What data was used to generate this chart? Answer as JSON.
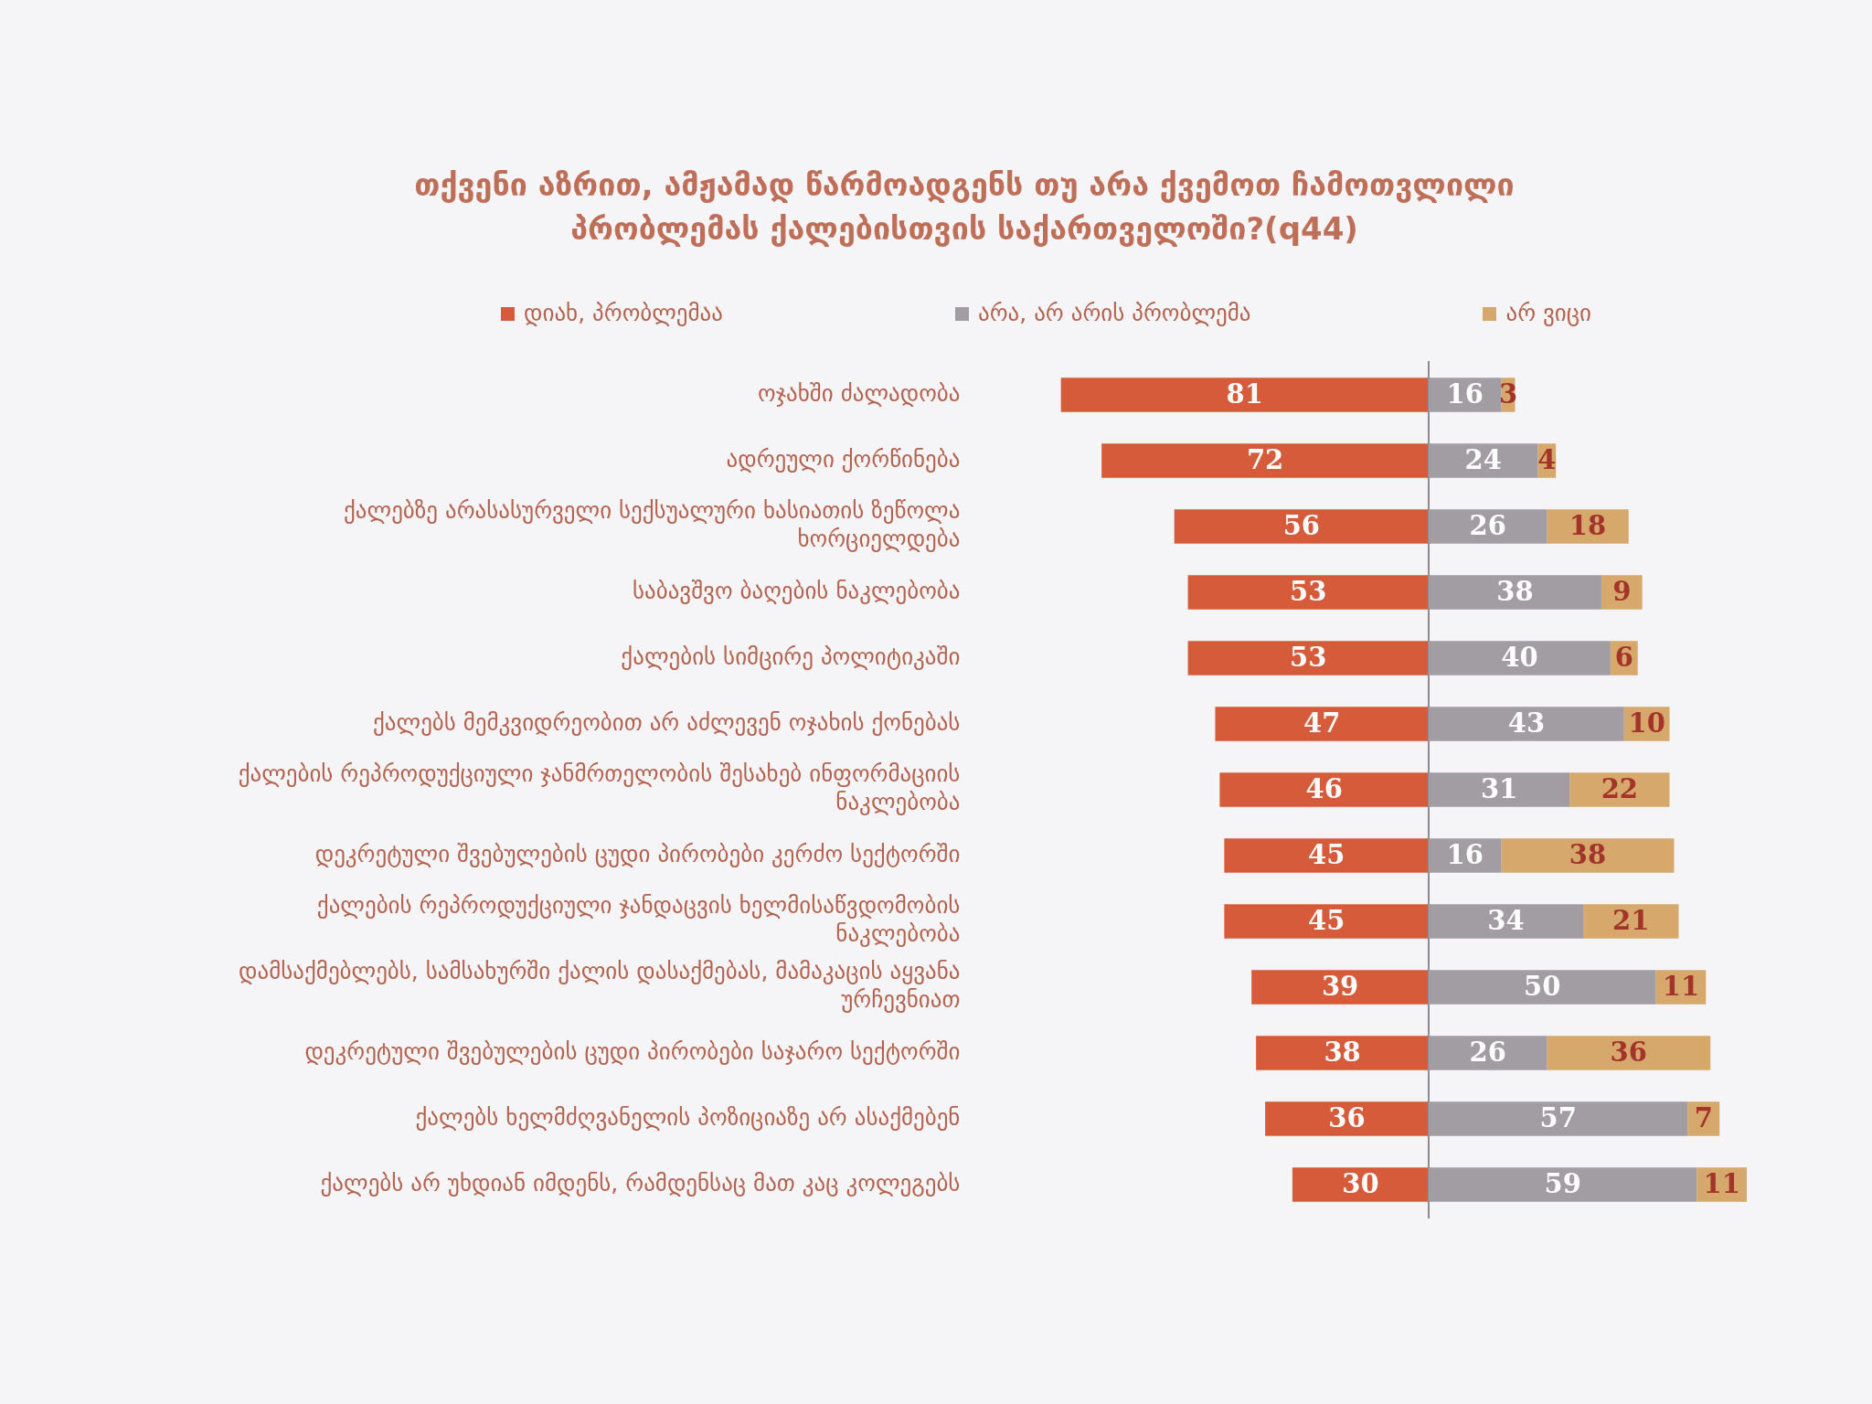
{
  "chart_data": [
    {
      "type": "bar",
      "orientation": "horizontal",
      "title": "თქვენი აზრით, ამჟამად წარმოადგენს თუ არა ქვემოთ ჩამოთვლილი პრობლემას ქალებისთვის საქართველოში?(q44)",
      "categories": [
        "ოჯახში ძალადობა",
        "ადრეული ქორწინება",
        "ქალებზე არასასურველი სექსუალური ხასიათის ზეწოლა ხორციელდება",
        "საბავშვო ბაღების ნაკლებობა",
        "ქალების სიმცირე პოლიტიკაში",
        "ქალებს მემკვიდრეობით არ აძლევენ ოჯახის ქონებას",
        "ქალების რეპროდუქციული ჯანმრთელობის შესახებ ინფორმაციის ნაკლებობა",
        "დეკრეტული შვებულების ცუდი პირობები კერძო სექტორში",
        "ქალების რეპროდუქციული ჯანდაცვის ხელმისაწვდომობის ნაკლებობა",
        "დამსაქმებლებს, სამსახურში ქალის დასაქმებას, მამაკაცის აყვანა ურჩევნიათ",
        "დეკრეტული შვებულების ცუდი პირობები საჯარო სექტორში",
        "ქალებს ხელმძღვანელის პოზიციაზე არ ასაქმებენ",
        "ქალებს არ უხდიან იმდენს, რამდენსაც მათ კაც კოლეგებს"
      ],
      "series": [
        {
          "name": "დიახ, პრობლემაა",
          "color": "#d65b3b",
          "values": [
            81,
            72,
            56,
            53,
            53,
            47,
            46,
            45,
            45,
            39,
            38,
            36,
            30
          ]
        }
      ],
      "xlim": [
        81,
        0
      ],
      "tick_labels": "y",
      "legend": "top",
      "data_labels": true
    },
    {
      "type": "bar",
      "orientation": "horizontal",
      "stacked": true,
      "categories": [
        null,
        null,
        null,
        null,
        null,
        null,
        null,
        null,
        null,
        null,
        null,
        null,
        null
      ],
      "series": [
        {
          "name": "არა, არ არის პრობლემა",
          "color": "#a29da3",
          "values": [
            16,
            24,
            26,
            38,
            40,
            43,
            31,
            16,
            34,
            50,
            26,
            57,
            59
          ]
        },
        {
          "name": "არ ვიცი",
          "color": "#d6a86c",
          "values": [
            3,
            4,
            18,
            9,
            6,
            10,
            22,
            38,
            21,
            11,
            36,
            7,
            11
          ]
        }
      ],
      "xlim": [
        0,
        70
      ],
      "tick_labels": false,
      "legend": "top",
      "data_labels": true
    }
  ]
}
